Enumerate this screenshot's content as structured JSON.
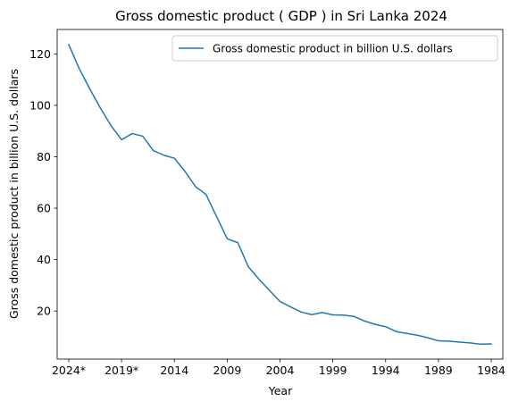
{
  "chart_data": {
    "type": "line",
    "title": "Gross domestic product ( GDP ) in Sri Lanka 2024",
    "xlabel": "Year",
    "ylabel": "Gross domestic product in billion U.S. dollars",
    "x_order": "descending",
    "xlim": [
      2025.1,
      1982.9
    ],
    "ylim": [
      1.3,
      129.5
    ],
    "x_ticks": [
      2024,
      2019,
      2014,
      2009,
      2004,
      1999,
      1994,
      1989,
      1984
    ],
    "x_tick_labels": [
      "2024*",
      "2019*",
      "2014",
      "2009",
      "2004",
      "1999",
      "1994",
      "1989",
      "1984"
    ],
    "y_ticks": [
      20,
      40,
      60,
      80,
      100,
      120
    ],
    "y_tick_labels": [
      "20",
      "40",
      "60",
      "80",
      "100",
      "120"
    ],
    "grid": false,
    "legend": "top-right",
    "x": [
      2024,
      2023,
      2022,
      2021,
      2020,
      2019,
      2018,
      2017,
      2016,
      2015,
      2014,
      2013,
      2012,
      2011,
      2010,
      2009,
      2008,
      2007,
      2006,
      2005,
      2004,
      2003,
      2002,
      2001,
      2000,
      1999,
      1998,
      1997,
      1996,
      1995,
      1994,
      1993,
      1992,
      1991,
      1990,
      1989,
      1988,
      1987,
      1986,
      1985,
      1984
    ],
    "series": [
      {
        "name": "Gross domestic product in billion U.S. dollars",
        "color": "#1f77b4",
        "values": [
          123.6,
          114.2,
          106.3,
          98.9,
          92.1,
          86.6,
          89.0,
          88.0,
          82.4,
          80.6,
          79.4,
          74.3,
          68.4,
          65.3,
          56.7,
          48.1,
          46.6,
          37.2,
          32.4,
          28.0,
          23.7,
          21.6,
          19.6,
          18.6,
          19.4,
          18.5,
          18.4,
          17.9,
          16.1,
          14.8,
          13.9,
          12.0,
          11.3,
          10.6,
          9.6,
          8.4,
          8.3,
          7.9,
          7.6,
          7.1,
          7.2
        ]
      }
    ]
  }
}
